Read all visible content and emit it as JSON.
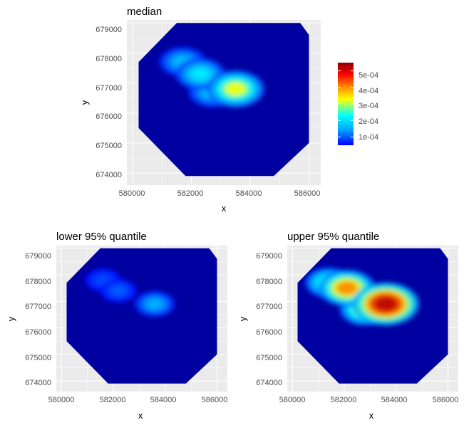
{
  "colors": {
    "panel_background": "#ebebeb",
    "gridline": "#ffffff",
    "surface_base": "#0000a0",
    "scale": [
      "#0000ff",
      "#00a0ff",
      "#00ffff",
      "#ffff00",
      "#ff7f00",
      "#ff0000",
      "#8b0000"
    ]
  },
  "chart_data": [
    {
      "type": "heatmap",
      "title": "median",
      "xlabel": "x",
      "ylabel": "y",
      "xlim": [
        579800,
        586400
      ],
      "ylim": [
        673600,
        679100
      ],
      "x_ticks": [
        "580000",
        "582000",
        "584000",
        "586000"
      ],
      "y_ticks": [
        "674000",
        "675000",
        "676000",
        "677000",
        "678000",
        "679000"
      ],
      "hotspots": [
        {
          "x": 583500,
          "y": 676800,
          "value": 0.0003
        },
        {
          "x": 582300,
          "y": 677300,
          "value": 0.0002
        },
        {
          "x": 581700,
          "y": 677700,
          "value": 0.00016
        },
        {
          "x": 582700,
          "y": 676700,
          "value": 0.00017
        }
      ]
    },
    {
      "type": "heatmap",
      "title": "lower 95% quantile",
      "xlabel": "x",
      "ylabel": "y",
      "xlim": [
        579800,
        586400
      ],
      "ylim": [
        673600,
        679100
      ],
      "x_ticks": [
        "580000",
        "582000",
        "584000",
        "586000"
      ],
      "y_ticks": [
        "674000",
        "675000",
        "676000",
        "677000",
        "678000",
        "679000"
      ],
      "hotspots": [
        {
          "x": 583600,
          "y": 676900,
          "value": 0.00015
        },
        {
          "x": 582200,
          "y": 677400,
          "value": 0.0001
        },
        {
          "x": 581600,
          "y": 677800,
          "value": 9e-05
        }
      ]
    },
    {
      "type": "heatmap",
      "title": "upper 95% quantile",
      "xlabel": "x",
      "ylabel": "y",
      "xlim": [
        579800,
        586400
      ],
      "ylim": [
        673600,
        679100
      ],
      "x_ticks": [
        "580000",
        "582000",
        "584000",
        "586000"
      ],
      "y_ticks": [
        "674000",
        "675000",
        "676000",
        "677000",
        "678000",
        "679000"
      ],
      "hotspots": [
        {
          "x": 583600,
          "y": 676900,
          "value": 0.00052
        },
        {
          "x": 582100,
          "y": 677500,
          "value": 0.00038
        },
        {
          "x": 581400,
          "y": 677700,
          "value": 0.00025
        },
        {
          "x": 582800,
          "y": 676700,
          "value": 0.0003
        }
      ]
    }
  ],
  "legend": {
    "min": 5e-05,
    "max": 0.00055,
    "ticks": [
      {
        "value": 0.0001,
        "label": "1e-04"
      },
      {
        "value": 0.0002,
        "label": "2e-04"
      },
      {
        "value": 0.0003,
        "label": "3e-04"
      },
      {
        "value": 0.0004,
        "label": "4e-04"
      },
      {
        "value": 0.0005,
        "label": "5e-04"
      }
    ]
  }
}
